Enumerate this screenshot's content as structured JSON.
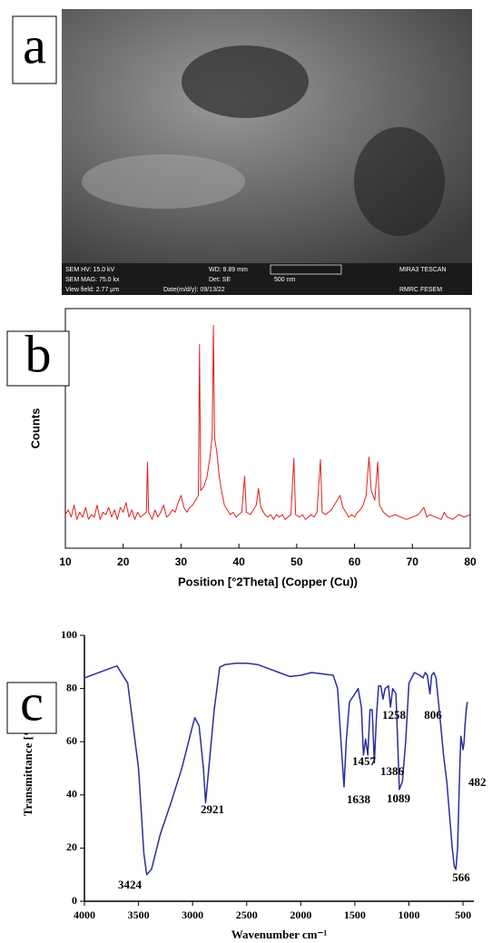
{
  "sem": {
    "panel_label": "a",
    "info": [
      "SEM HV: 15.0 kV",
      "WD: 9.89 mm",
      "MIRA3 TESCAN",
      "SEM MAG: 75.0 kx",
      "Det: SE",
      "500 nm",
      "View field: 2.77 μm",
      "Date(m/d/y): 09/13/22",
      "RMRC  FESEM"
    ]
  },
  "chart_data": [
    {
      "type": "line",
      "panel_label": "b",
      "xlabel": "Position [°2Theta] (Copper (Cu))",
      "ylabel": "Counts",
      "xlim": [
        10,
        80
      ],
      "xticks": [
        10,
        20,
        30,
        40,
        50,
        60,
        70,
        80
      ],
      "ylim": [
        0,
        100
      ],
      "x": [
        10,
        10.5,
        11,
        11.5,
        12,
        12.5,
        13,
        13.5,
        14,
        14.5,
        15,
        15.5,
        16,
        16.5,
        17,
        17.5,
        18,
        18.5,
        19,
        19.5,
        20,
        20.5,
        21,
        21.5,
        22,
        22.5,
        23,
        23.5,
        24,
        24.2,
        24.4,
        25,
        25.5,
        26,
        26.5,
        27,
        27.5,
        28,
        28.5,
        29,
        29.5,
        30,
        30.5,
        31,
        31.5,
        32,
        32.5,
        33,
        33.2,
        33.4,
        34,
        34.5,
        35,
        35.4,
        35.6,
        35.8,
        36.2,
        36.6,
        37,
        37.5,
        38,
        38.5,
        39,
        39.5,
        40,
        40.5,
        41,
        41.3,
        42,
        42.5,
        43,
        43.4,
        43.8,
        44.5,
        45,
        45.5,
        46,
        46.5,
        47,
        47.5,
        48,
        48.5,
        49,
        49.5,
        49.8,
        50.5,
        51,
        51.5,
        52,
        52.5,
        53,
        53.5,
        54.1,
        54.4,
        55,
        55.5,
        56,
        56.5,
        57,
        57.5,
        58,
        58.5,
        59,
        59.5,
        60,
        60.5,
        61,
        61.5,
        62,
        62.5,
        62.9,
        63.5,
        64,
        64.3,
        65,
        65.5,
        66,
        67,
        68,
        69,
        70,
        71,
        72,
        72.5,
        73,
        74,
        75,
        75.5,
        76,
        77,
        78,
        79,
        80
      ],
      "series": [
        {
          "color": "#e0201e",
          "values": [
            14,
            16,
            13,
            18,
            12,
            15,
            13,
            17,
            12,
            14,
            13,
            18,
            12,
            15,
            14,
            17,
            13,
            16,
            12,
            17,
            15,
            19,
            13,
            16,
            12,
            15,
            13,
            14,
            15,
            36,
            15,
            12,
            16,
            13,
            15,
            18,
            13,
            14,
            16,
            15,
            19,
            22,
            17,
            15,
            17,
            18,
            20,
            22,
            85,
            24,
            26,
            30,
            38,
            47,
            93,
            46,
            40,
            30,
            24,
            18,
            16,
            14,
            15,
            13,
            14,
            15,
            30,
            15,
            14,
            16,
            18,
            25,
            17,
            14,
            13,
            14,
            12,
            14,
            13,
            14,
            12,
            13,
            14,
            37.5,
            14,
            13,
            14,
            12,
            13,
            14,
            13,
            15,
            37,
            15,
            14,
            15,
            16,
            18,
            20,
            22,
            17,
            15,
            13,
            14,
            13,
            15,
            16,
            18,
            22,
            38,
            24,
            20,
            36,
            18,
            15,
            14,
            13,
            14,
            13,
            12,
            13,
            14,
            17,
            13,
            14,
            13,
            12,
            15,
            13,
            12,
            14,
            13,
            14
          ]
        }
      ]
    },
    {
      "type": "line",
      "panel_label": "c",
      "xlabel": "Wavenumber cm⁻¹",
      "ylabel": "Transmittance [%]",
      "xlim": [
        4000,
        400
      ],
      "xticks": [
        4000,
        3500,
        3000,
        2500,
        2000,
        1500,
        1000,
        500
      ],
      "ylim": [
        0,
        100
      ],
      "yticks": [
        0,
        20,
        40,
        60,
        80,
        100
      ],
      "annotations": [
        "3424",
        "2921",
        "1638",
        "1457",
        "1386",
        "1258",
        "1089",
        "806",
        "566",
        "482"
      ],
      "x": [
        4000,
        3800,
        3700,
        3600,
        3500,
        3450,
        3424,
        3380,
        3300,
        3200,
        3100,
        3000,
        2980,
        2940,
        2900,
        2880,
        2850,
        2800,
        2750,
        2700,
        2600,
        2500,
        2400,
        2300,
        2200,
        2100,
        2000,
        1900,
        1800,
        1700,
        1660,
        1620,
        1600,
        1580,
        1550,
        1500,
        1470,
        1440,
        1420,
        1400,
        1380,
        1360,
        1340,
        1320,
        1300,
        1280,
        1260,
        1240,
        1220,
        1190,
        1170,
        1150,
        1120,
        1100,
        1089,
        1060,
        1030,
        1000,
        950,
        900,
        870,
        850,
        830,
        806,
        790,
        770,
        750,
        720,
        680,
        650,
        620,
        600,
        580,
        566,
        550,
        530,
        520,
        500,
        490,
        482,
        470,
        460
      ],
      "series": [
        {
          "color": "#2b2e9c",
          "values": [
            84,
            87,
            88.5,
            82,
            50,
            18,
            10,
            12,
            25,
            37,
            50,
            66,
            69,
            66,
            50,
            37,
            50,
            72,
            88,
            89,
            89.5,
            89.5,
            89,
            87.5,
            86,
            84.5,
            85,
            86,
            85.5,
            85,
            80,
            55,
            43,
            60,
            75,
            78,
            80,
            73,
            55,
            61,
            55,
            72,
            72,
            52,
            70,
            81,
            81,
            76,
            80,
            81,
            73,
            80,
            78,
            55,
            42,
            45,
            60,
            82,
            86,
            85,
            84,
            86,
            85,
            78,
            85,
            86,
            84,
            72,
            55,
            45,
            30,
            20,
            13,
            12,
            20,
            50,
            62,
            57,
            60,
            66,
            72,
            75
          ]
        }
      ]
    }
  ]
}
